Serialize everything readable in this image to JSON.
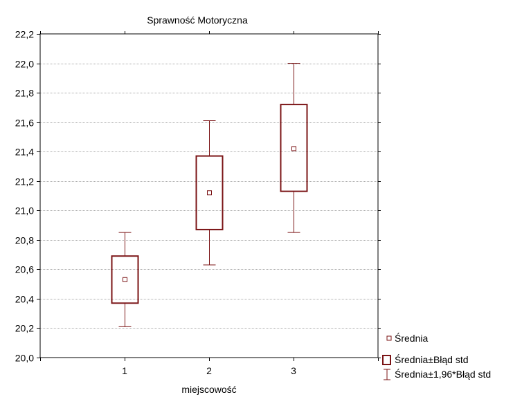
{
  "chart_data": {
    "type": "box",
    "title": "Sprawność Motoryczna",
    "xlabel": "miejscowość",
    "ylabel": "",
    "categories": [
      "1",
      "2",
      "3"
    ],
    "ylim": [
      20.0,
      22.2
    ],
    "yticks": [
      "20,0",
      "20,2",
      "20,4",
      "20,6",
      "20,8",
      "21,0",
      "21,2",
      "21,4",
      "21,6",
      "21,8",
      "22,0",
      "22,2"
    ],
    "ytick_values": [
      20.0,
      20.2,
      20.4,
      20.6,
      20.8,
      21.0,
      21.2,
      21.4,
      21.6,
      21.8,
      22.0,
      22.2
    ],
    "series": [
      {
        "name": "Średnia",
        "values": [
          20.53,
          21.12,
          21.42
        ]
      },
      {
        "name": "Średnia±Błąd std",
        "low": [
          20.37,
          20.87,
          21.13
        ],
        "high": [
          20.69,
          21.37,
          21.72
        ]
      },
      {
        "name": "Średnia±1,96*Błąd std",
        "low": [
          20.21,
          20.63,
          20.85
        ],
        "high": [
          20.85,
          21.61,
          22.0
        ]
      }
    ],
    "grid": "horizontal",
    "legend_position": "bottom-right",
    "colors": {
      "box": "#7b1416",
      "mean": "#7b1416",
      "grid": "#a8a8a8",
      "axis": "#000000"
    }
  }
}
